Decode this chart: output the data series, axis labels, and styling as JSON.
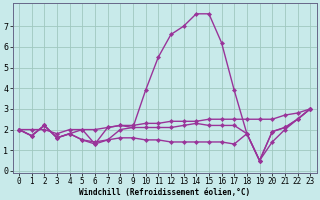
{
  "xlabel": "Windchill (Refroidissement éolien,°C)",
  "background_color": "#c8eaea",
  "grid_color": "#a0c8c0",
  "line_color": "#993399",
  "x_values": [
    0,
    1,
    2,
    3,
    4,
    5,
    6,
    7,
    8,
    9,
    10,
    11,
    12,
    13,
    14,
    15,
    16,
    17,
    18,
    19,
    20,
    21,
    22,
    23
  ],
  "series": [
    [
      2.0,
      1.7,
      2.2,
      1.6,
      1.8,
      2.0,
      1.3,
      2.1,
      2.2,
      2.1,
      3.9,
      5.5,
      6.6,
      7.0,
      7.6,
      7.6,
      6.2,
      3.9,
      1.8,
      0.5,
      1.4,
      2.0,
      2.5,
      3.0
    ],
    [
      2.0,
      1.7,
      2.2,
      1.6,
      1.8,
      1.5,
      1.3,
      1.5,
      2.0,
      2.1,
      2.1,
      2.1,
      2.1,
      2.2,
      2.3,
      2.2,
      2.2,
      2.2,
      1.8,
      0.5,
      1.9,
      2.1,
      2.5,
      3.0
    ],
    [
      2.0,
      2.0,
      2.0,
      1.8,
      2.0,
      2.0,
      2.0,
      2.1,
      2.2,
      2.2,
      2.3,
      2.3,
      2.4,
      2.4,
      2.4,
      2.5,
      2.5,
      2.5,
      2.5,
      2.5,
      2.5,
      2.7,
      2.8,
      3.0
    ],
    [
      2.0,
      1.7,
      2.2,
      1.6,
      1.8,
      1.5,
      1.4,
      1.5,
      1.6,
      1.6,
      1.5,
      1.5,
      1.4,
      1.4,
      1.4,
      1.4,
      1.4,
      1.3,
      1.8,
      0.5,
      1.9,
      2.1,
      2.5,
      3.0
    ]
  ],
  "ylim": [
    -0.1,
    8.1
  ],
  "xlim": [
    -0.5,
    23.5
  ],
  "yticks": [
    0,
    1,
    2,
    3,
    4,
    5,
    6,
    7
  ],
  "xticks": [
    0,
    1,
    2,
    3,
    4,
    5,
    6,
    7,
    8,
    9,
    10,
    11,
    12,
    13,
    14,
    15,
    16,
    17,
    18,
    19,
    20,
    21,
    22,
    23
  ],
  "ylabel_fontsize": 6,
  "xlabel_fontsize": 5.5,
  "tick_labelsize": 5.5,
  "linewidth": 1.0,
  "markersize": 2.2,
  "spine_color": "#666688"
}
